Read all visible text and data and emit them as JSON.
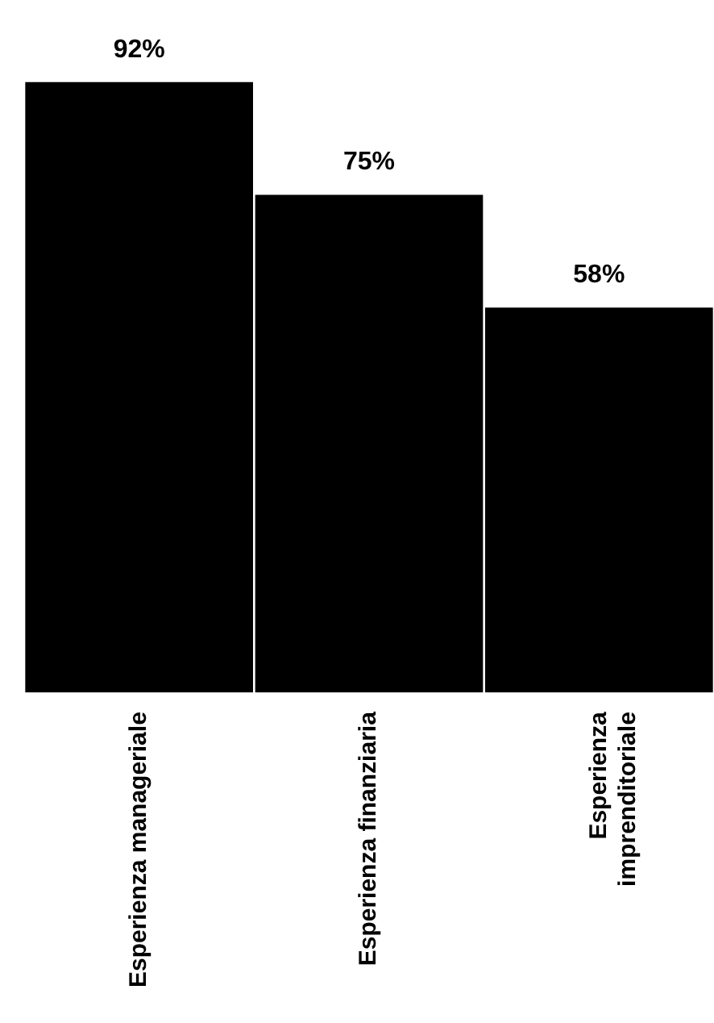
{
  "chart_data": {
    "type": "bar",
    "categories": [
      "Esperienza manageriale",
      "Esperienza finanziaria",
      "Esperienza imprenditoriale"
    ],
    "values": [
      92,
      75,
      58
    ],
    "color": "#000000",
    "value_labels": [
      "92%",
      "75%",
      "58%"
    ],
    "tick_labels": "x",
    "grid": false,
    "legend": false
  }
}
